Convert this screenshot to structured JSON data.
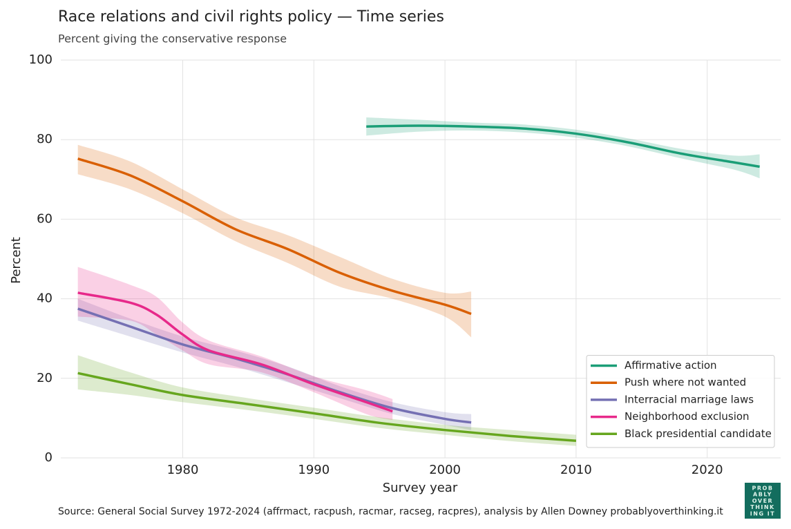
{
  "chart_data": {
    "type": "line",
    "title": "Race relations and civil rights policy — Time series",
    "subtitle": "Percent giving the conservative response",
    "x_label": "Survey year",
    "y_label": "Percent",
    "source": "Source: General Social Survey 1972-2024 (affrmact, racpush, racmar, racseg, racpres), analysis by Allen Downey probablyoverthinking.it",
    "logo": [
      "PROB",
      "ABLY",
      "OVER",
      "THINK",
      "ING IT"
    ],
    "xlim": [
      1970.7,
      2025.6
    ],
    "xticks": [
      1980,
      1990,
      2000,
      2010,
      2020
    ],
    "ylim": [
      0,
      100
    ],
    "yticks": [
      0,
      20,
      40,
      60,
      80,
      100
    ],
    "grid": true,
    "legend": "lower right",
    "series": [
      {
        "name": "Affirmative action",
        "color": "#1b9e77",
        "x": [
          1994,
          1998,
          2002,
          2006,
          2010,
          2014,
          2018,
          2022,
          2024
        ],
        "values": [
          83.3,
          83.5,
          83.3,
          82.8,
          81.5,
          79.3,
          76.5,
          74.3,
          73.2
        ],
        "lower": [
          81,
          82,
          82.3,
          81.8,
          80.5,
          78.3,
          75.3,
          72.5,
          70.3
        ],
        "upper": [
          85.6,
          85,
          84.3,
          83.8,
          82.5,
          80.3,
          77.7,
          76,
          76.3
        ]
      },
      {
        "name": "Push where not wanted",
        "color": "#d95f02",
        "x": [
          1972,
          1976,
          1980,
          1984,
          1988,
          1992,
          1996,
          2000,
          2002
        ],
        "values": [
          75.2,
          71,
          64.5,
          57.5,
          52.5,
          46.5,
          42,
          38.5,
          36.2
        ],
        "lower": [
          71.3,
          67.5,
          61.5,
          54.5,
          49,
          43,
          40,
          35.5,
          30.3
        ],
        "upper": [
          78.7,
          74.5,
          67.5,
          60.5,
          56,
          50.5,
          45,
          41.5,
          41.8
        ]
      },
      {
        "name": "Interracial marriage laws",
        "color": "#7570b3",
        "x": [
          1972,
          1976,
          1980,
          1984,
          1988,
          1992,
          1996,
          2000,
          2002
        ],
        "values": [
          37.5,
          33,
          28.5,
          25,
          21,
          16.5,
          12.5,
          9.8,
          8.9
        ],
        "lower": [
          34.5,
          30.5,
          26.5,
          23,
          19,
          15,
          11,
          8.3,
          7
        ],
        "upper": [
          40,
          35,
          30.5,
          27,
          23,
          18,
          14,
          11.5,
          11
        ]
      },
      {
        "name": "Neighborhood exclusion",
        "color": "#e7298a",
        "x": [
          1972,
          1976,
          1978,
          1980,
          1982,
          1986,
          1990,
          1994,
          1996
        ],
        "values": [
          41.5,
          39,
          36,
          31,
          27,
          23.5,
          18.5,
          14,
          11.7
        ],
        "lower": [
          35.5,
          34.5,
          31,
          27,
          23.5,
          21.5,
          16.5,
          11,
          9.5
        ],
        "upper": [
          48,
          43.5,
          40.5,
          34,
          29.5,
          25.5,
          20.5,
          17,
          14.8
        ]
      },
      {
        "name": "Black presidential candidate",
        "color": "#66a61e",
        "x": [
          1972,
          1976,
          1980,
          1985,
          1990,
          1995,
          2000,
          2005,
          2010
        ],
        "values": [
          21.3,
          18.5,
          15.8,
          13.5,
          11.2,
          8.8,
          7,
          5.5,
          4.3
        ],
        "lower": [
          17.2,
          15.8,
          14,
          12,
          9.8,
          7.5,
          5.8,
          4.2,
          3
        ],
        "upper": [
          25.8,
          21.5,
          17.7,
          15,
          12.6,
          10.2,
          8.3,
          7,
          5.8
        ]
      }
    ]
  }
}
